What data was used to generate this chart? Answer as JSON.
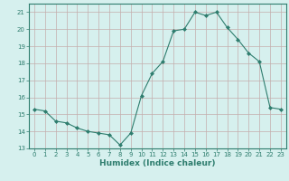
{
  "x": [
    0,
    1,
    2,
    3,
    4,
    5,
    6,
    7,
    8,
    9,
    10,
    11,
    12,
    13,
    14,
    15,
    16,
    17,
    18,
    19,
    20,
    21,
    22,
    23
  ],
  "y": [
    15.3,
    15.2,
    14.6,
    14.5,
    14.2,
    14.0,
    13.9,
    13.8,
    13.2,
    13.9,
    16.1,
    17.4,
    18.1,
    19.9,
    20.0,
    21.0,
    20.8,
    21.0,
    20.1,
    19.4,
    18.6,
    18.1,
    15.4,
    15.3
  ],
  "line_color": "#2e7d6e",
  "marker": "D",
  "marker_size": 2.0,
  "bg_color": "#d6f0ee",
  "grid_color": "#c4adad",
  "xlabel": "Humidex (Indice chaleur)",
  "ylim": [
    13,
    21.5
  ],
  "yticks": [
    13,
    14,
    15,
    16,
    17,
    18,
    19,
    20,
    21
  ],
  "xlim": [
    -0.5,
    23.5
  ],
  "axis_color": "#2e7d6e",
  "tick_color": "#2e7d6e",
  "label_color": "#2e7d6e",
  "tick_fontsize": 5.0,
  "xlabel_fontsize": 6.5,
  "linewidth": 0.8
}
